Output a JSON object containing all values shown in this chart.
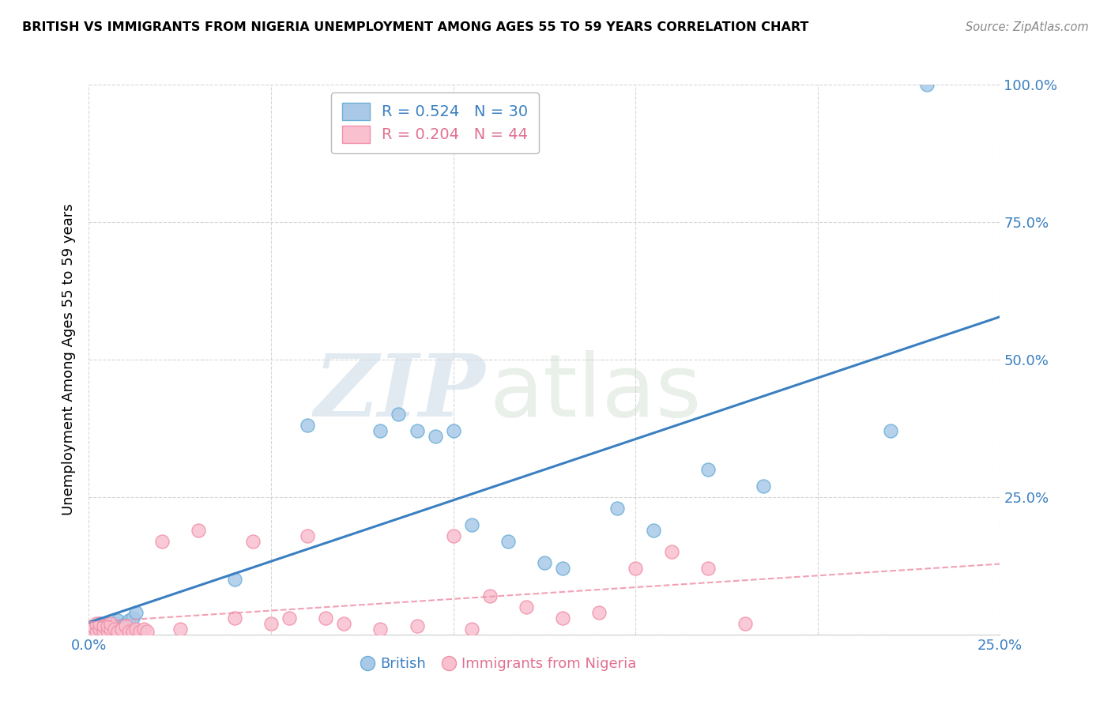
{
  "title": "BRITISH VS IMMIGRANTS FROM NIGERIA UNEMPLOYMENT AMONG AGES 55 TO 59 YEARS CORRELATION CHART",
  "source": "Source: ZipAtlas.com",
  "ylabel": "Unemployment Among Ages 55 to 59 years",
  "watermark_zip": "ZIP",
  "watermark_atlas": "atlas",
  "xlim": [
    0.0,
    0.25
  ],
  "ylim": [
    0.0,
    1.0
  ],
  "xticks": [
    0.0,
    0.05,
    0.1,
    0.15,
    0.2,
    0.25
  ],
  "yticks": [
    0.0,
    0.25,
    0.5,
    0.75,
    1.0
  ],
  "british_R": 0.524,
  "british_N": 30,
  "nigeria_R": 0.204,
  "nigeria_N": 44,
  "british_color": "#aac9e8",
  "british_edge_color": "#6aaed6",
  "nigeria_color": "#f9c0d0",
  "nigeria_edge_color": "#f090a8",
  "british_line_color": "#3a7fc1",
  "nigeria_line_color": "#f090a8",
  "text_blue": "#3a7fc1",
  "text_pink": "#e07090",
  "british_x": [
    0.001,
    0.002,
    0.003,
    0.004,
    0.005,
    0.006,
    0.007,
    0.008,
    0.009,
    0.01,
    0.011,
    0.012,
    0.013,
    0.04,
    0.06,
    0.08,
    0.085,
    0.09,
    0.095,
    0.1,
    0.105,
    0.115,
    0.125,
    0.13,
    0.145,
    0.155,
    0.17,
    0.185,
    0.22,
    0.23
  ],
  "british_y": [
    0.01,
    0.015,
    0.02,
    0.01,
    0.02,
    0.015,
    0.02,
    0.025,
    0.015,
    0.02,
    0.025,
    0.03,
    0.04,
    0.1,
    0.38,
    0.37,
    0.4,
    0.37,
    0.36,
    0.37,
    0.2,
    0.17,
    0.13,
    0.12,
    0.23,
    0.19,
    0.3,
    0.27,
    0.37,
    1.0
  ],
  "nigeria_x": [
    0.001,
    0.001,
    0.002,
    0.002,
    0.003,
    0.003,
    0.004,
    0.004,
    0.005,
    0.005,
    0.006,
    0.006,
    0.007,
    0.008,
    0.009,
    0.01,
    0.011,
    0.012,
    0.013,
    0.014,
    0.015,
    0.016,
    0.02,
    0.025,
    0.03,
    0.04,
    0.045,
    0.05,
    0.055,
    0.06,
    0.065,
    0.07,
    0.08,
    0.09,
    0.1,
    0.105,
    0.11,
    0.12,
    0.13,
    0.14,
    0.15,
    0.16,
    0.17,
    0.18
  ],
  "nigeria_y": [
    0.005,
    0.015,
    0.005,
    0.02,
    0.01,
    0.02,
    0.005,
    0.015,
    0.005,
    0.015,
    0.01,
    0.02,
    0.01,
    0.005,
    0.01,
    0.015,
    0.005,
    0.005,
    0.01,
    0.005,
    0.01,
    0.005,
    0.17,
    0.01,
    0.19,
    0.03,
    0.17,
    0.02,
    0.03,
    0.18,
    0.03,
    0.02,
    0.01,
    0.015,
    0.18,
    0.01,
    0.07,
    0.05,
    0.03,
    0.04,
    0.12,
    0.15,
    0.12,
    0.02
  ],
  "background_color": "#ffffff",
  "grid_color": "#cccccc"
}
